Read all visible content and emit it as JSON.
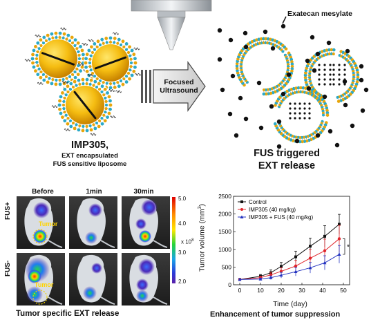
{
  "labels": {
    "drug": "Exatecan mesylate",
    "fus": [
      "Focused",
      "Ultrasound"
    ],
    "imp_title": "IMP305,",
    "imp_sub1": "EXT encapsulated",
    "imp_sub2": "FUS sensitive liposome",
    "triggered1": "FUS triggered",
    "triggered2": "EXT release"
  },
  "imaging": {
    "columns": [
      "Before",
      "1min",
      "30min"
    ],
    "rows": [
      "FUS+",
      "FUS-"
    ],
    "tumor_label": "Tumor",
    "scale_ticks": [
      "5.0",
      "4.0",
      "3.0",
      "2.0"
    ],
    "scale_unit": "x 10",
    "scale_exp": "8",
    "caption": "Tumor specific EXT release"
  },
  "chart_data": {
    "type": "line",
    "title": "",
    "xlabel": "Time (day)",
    "ylabel": "Tumor volume (mm",
    "ylabel_sup": "3",
    "ylabel_end": ")",
    "xlim": [
      -3,
      53
    ],
    "ylim": [
      0,
      2500
    ],
    "xticks": [
      0,
      10,
      20,
      30,
      40,
      50
    ],
    "yticks": [
      0,
      500,
      1000,
      1500,
      2000,
      2500
    ],
    "x": [
      0,
      10,
      15,
      20,
      27,
      34,
      41,
      48
    ],
    "series": [
      {
        "name": "Control",
        "color": "#111111",
        "marker": "square",
        "values": [
          150,
          240,
          340,
          520,
          790,
          1090,
          1370,
          1710
        ],
        "err": [
          25,
          50,
          80,
          110,
          160,
          230,
          300,
          280
        ]
      },
      {
        "name": "IMP305 (40 mg/kg)",
        "color": "#e0252b",
        "marker": "circle",
        "values": [
          150,
          200,
          280,
          380,
          530,
          750,
          960,
          1300
        ],
        "err": [
          25,
          40,
          70,
          100,
          160,
          250,
          330,
          380
        ]
      },
      {
        "name": "IMP305 + FUS (40 mg/kg)",
        "color": "#2433c0",
        "marker": "triangle",
        "values": [
          150,
          160,
          200,
          270,
          370,
          480,
          620,
          860
        ],
        "err": [
          20,
          30,
          50,
          80,
          120,
          150,
          200,
          250
        ]
      }
    ],
    "significance": "*",
    "caption": "Enhancement of tumor suppression"
  }
}
